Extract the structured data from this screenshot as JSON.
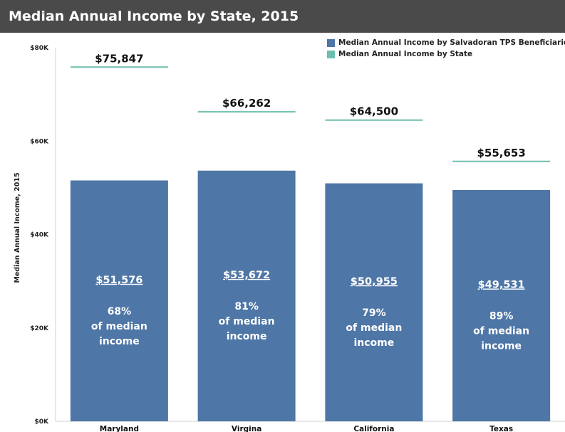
{
  "chart_data": {
    "type": "bar",
    "title": "Median Annual Income by State,  2015",
    "ylabel": "Median Annual Income, 2015",
    "xlabel": "",
    "ylim": [
      0,
      80000
    ],
    "y_ticks": [
      {
        "value": 0,
        "label": "$0K"
      },
      {
        "value": 20000,
        "label": "$20K"
      },
      {
        "value": 40000,
        "label": "$40K"
      },
      {
        "value": 60000,
        "label": "$60K"
      },
      {
        "value": 80000,
        "label": "$80K"
      }
    ],
    "categories": [
      "Maryland",
      "Virgina",
      "California",
      "Texas"
    ],
    "series": [
      {
        "name": "Median Annual Income by Salvadoran TPS Beneficiaries",
        "mark": "bar",
        "color": "#4e76a6",
        "values": [
          51576,
          53672,
          50955,
          49531
        ],
        "labels": [
          "$51,576",
          "$53,672",
          "$50,955",
          "$49,531"
        ],
        "pct_labels": [
          "68%",
          "81%",
          "79%",
          "89%"
        ],
        "pct_caption": [
          "of median",
          "income"
        ]
      },
      {
        "name": "Median Annual Income by State",
        "mark": "reference-line",
        "color": "#6cbfae",
        "values": [
          75847,
          66262,
          64500,
          55653
        ],
        "labels": [
          "$75,847",
          "$66,262",
          "$64,500",
          "$55,653"
        ]
      }
    ],
    "legend_position": "top-right",
    "grid": false
  }
}
